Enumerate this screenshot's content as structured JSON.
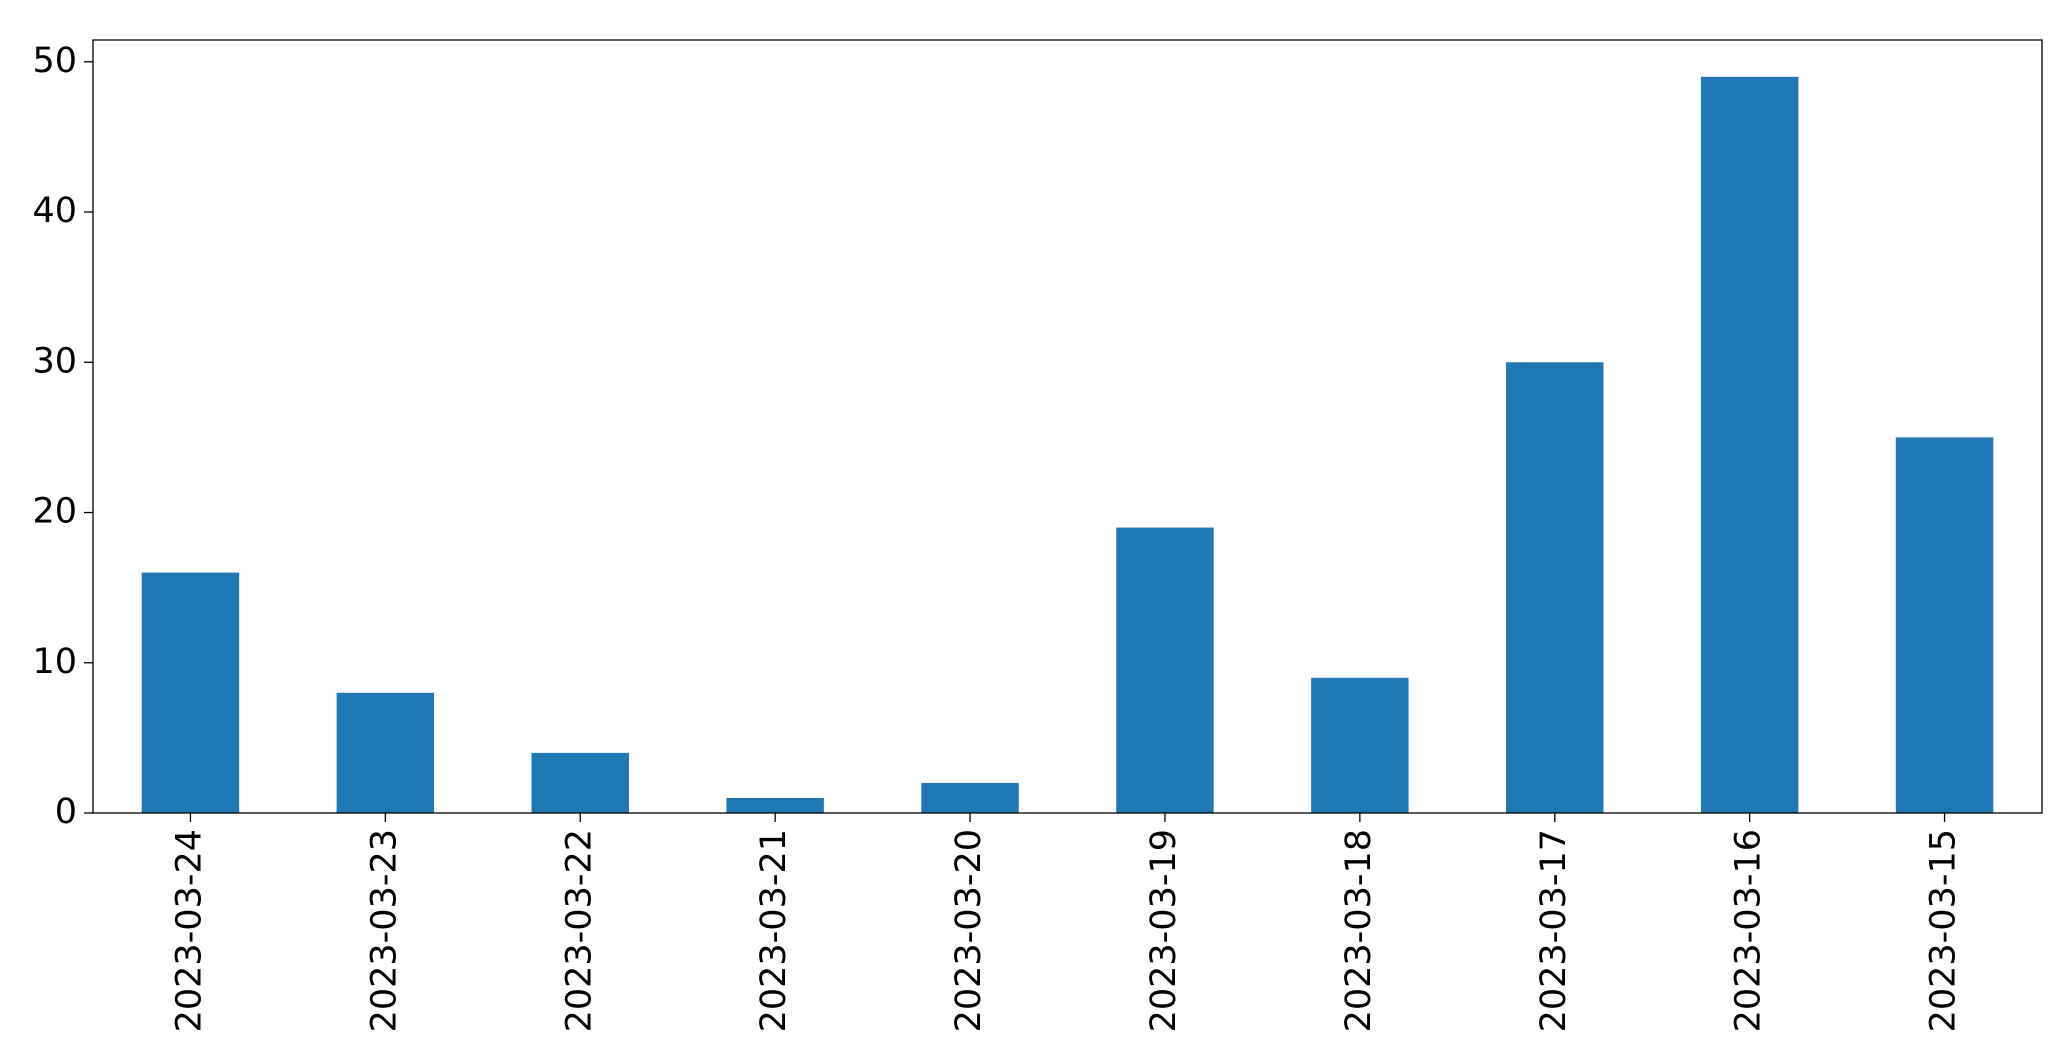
{
  "chart_data": {
    "type": "bar",
    "categories": [
      "2023-03-24",
      "2023-03-23",
      "2023-03-22",
      "2023-03-21",
      "2023-03-20",
      "2023-03-19",
      "2023-03-18",
      "2023-03-17",
      "2023-03-16",
      "2023-03-15"
    ],
    "values": [
      16,
      8,
      4,
      1,
      2,
      19,
      9,
      30,
      49,
      25
    ],
    "color": "#1f77b4",
    "ylim": [
      0,
      51.45
    ],
    "yticks": [
      0,
      10,
      20,
      30,
      40,
      50
    ],
    "grid": false
  }
}
